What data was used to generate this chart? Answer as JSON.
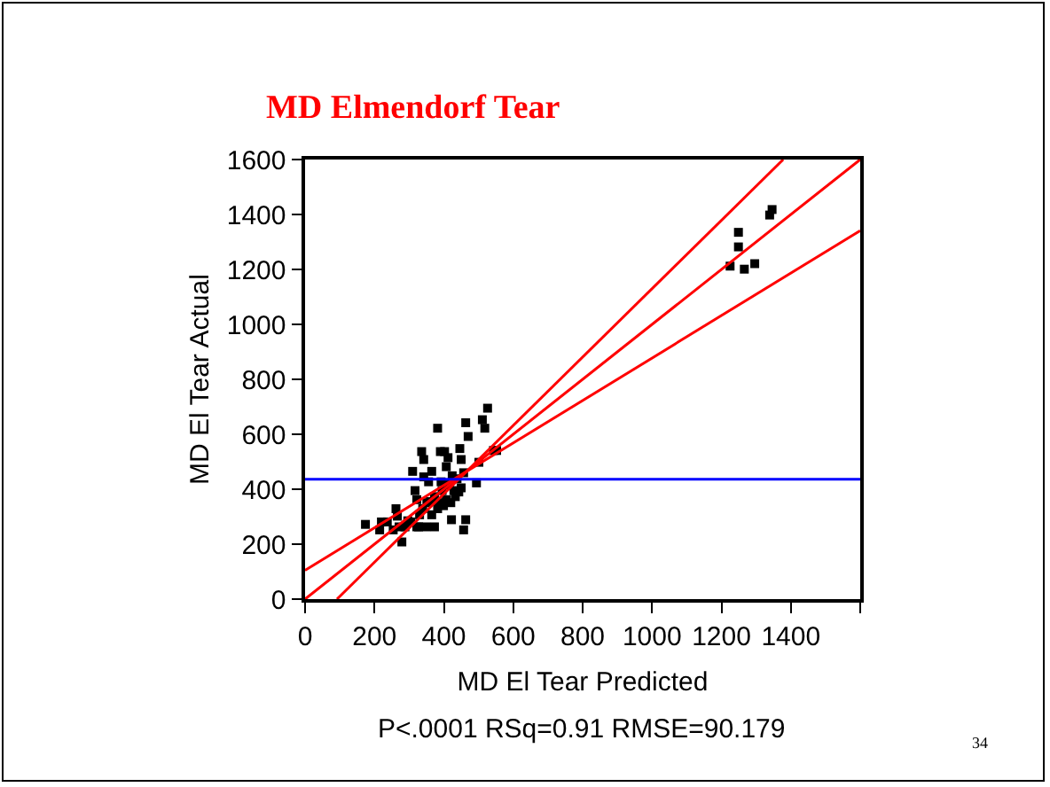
{
  "chart_data": {
    "type": "scatter",
    "title": "MD Elmendorf Tear",
    "xlabel": "MD El Tear Predicted",
    "ylabel": "MD El Tear Actual",
    "annotations": [
      "P<.0001 RSq=0.91 RMSE=90.179",
      "34"
    ],
    "xlim": [
      0,
      1600
    ],
    "xticks": [
      0,
      200,
      400,
      600,
      800,
      1000,
      1200,
      1400,
      {
        "value": 1600,
        "label": null
      }
    ],
    "ylim": [
      0,
      1600
    ],
    "yticks": [
      0,
      200,
      400,
      600,
      800,
      1000,
      1200,
      1400,
      1600
    ],
    "ref_lines": [
      {
        "axis": "y",
        "value": 436,
        "color": "#0000ff"
      }
    ],
    "series": [
      {
        "marker": "square",
        "color": "#000000",
        "x": [
          1225,
          1249,
          1249,
          1266,
          1296,
          1339,
          1346,
          174,
          215,
          220,
          237,
          262,
          266,
          279,
          254,
          288,
          296,
          310,
          317,
          322,
          330,
          336,
          342,
          342,
          351,
          356,
          365,
          365,
          373,
          382,
          385,
          390,
          395,
          402,
          407,
          412,
          416,
          420,
          424,
          433,
          438,
          446,
          450,
          450,
          457,
          463,
          470,
          457,
          463,
          422,
          443,
          494,
          501,
          511,
          518,
          526,
          543,
          552,
          327,
          348,
          305,
          382,
          399,
          407,
          429,
          339,
          361,
          392,
          373,
          322,
          271
        ],
        "values": [
          1212,
          1282,
          1335,
          1201,
          1221,
          1398,
          1418,
          272,
          252,
          281,
          281,
          329,
          302,
          208,
          252,
          263,
          285,
          465,
          395,
          362,
          307,
          537,
          508,
          445,
          351,
          427,
          465,
          307,
          373,
          622,
          351,
          537,
          395,
          537,
          482,
          515,
          416,
          351,
          449,
          373,
          438,
          548,
          508,
          405,
          460,
          642,
          592,
          252,
          289,
          289,
          390,
          423,
          498,
          653,
          622,
          695,
          541,
          541,
          263,
          263,
          281,
          329,
          340,
          362,
          395,
          329,
          355,
          427,
          263,
          263,
          263
        ]
      },
      {
        "type": "line",
        "marker": "none",
        "color": "#ff0000",
        "x": [
          0,
          1600
        ],
        "values": [
          0,
          1600
        ]
      },
      {
        "type": "line",
        "marker": "none",
        "color": "#ff0000",
        "x": [
          92,
          1378
        ],
        "values": [
          0,
          1600
        ]
      },
      {
        "type": "line",
        "marker": "none",
        "color": "#ff0000",
        "x": [
          0,
          1600
        ],
        "values": [
          105,
          1341
        ]
      }
    ]
  }
}
